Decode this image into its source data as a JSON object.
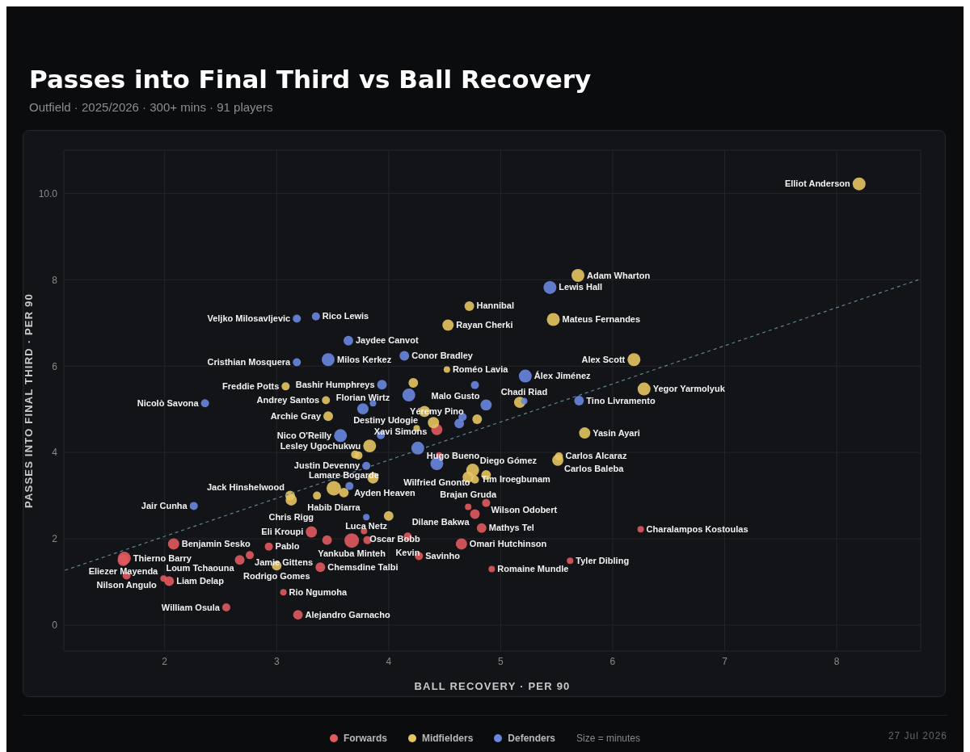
{
  "chart_data": {
    "type": "bubble",
    "title": "Passes into Final Third vs Ball Recovery",
    "subtitle": "Outfield · 2025/2026 · 300+ mins · 91 players",
    "xlabel": "BALL RECOVERY · PER 90",
    "ylabel": "PASSES INTO FINAL THIRD · PER 90",
    "xlim": [
      1.1,
      8.75
    ],
    "xticks": [
      2,
      3,
      4,
      5,
      6,
      7,
      8
    ],
    "ylim": [
      -0.6,
      11
    ],
    "yticks": [
      0,
      2,
      4,
      6,
      8,
      {
        "value": 10,
        "label": "10.0"
      }
    ],
    "grid": true,
    "legend": "bottom",
    "series": [
      {
        "name": "Forwards",
        "color": "#e05a5e",
        "x": [
          1.64,
          1.63,
          1.66,
          2.04,
          1.99,
          2.08,
          2.67,
          2.76,
          2.93,
          2.55,
          3.06,
          3.19,
          3.39,
          3.31,
          3.45,
          3.67,
          3.78,
          3.81,
          4.17,
          4.27,
          4.65,
          4.92,
          4.83,
          4.71,
          4.77,
          4.87,
          5.62,
          6.25,
          4.43,
          4.45
        ],
        "values": [
          1.55,
          1.5,
          1.15,
          1.02,
          1.08,
          1.88,
          1.51,
          1.62,
          1.82,
          0.41,
          0.76,
          0.24,
          1.34,
          2.16,
          1.97,
          1.96,
          2.18,
          1.97,
          2.05,
          1.6,
          1.88,
          1.3,
          2.25,
          2.74,
          2.57,
          2.83,
          1.49,
          2.22,
          4.53,
          3.93
        ],
        "sizes": [
          0.79,
          0.6,
          0.31,
          0.44,
          0.2,
          0.6,
          0.44,
          0.31,
          0.31,
          0.31,
          0.2,
          0.44,
          0.44,
          0.6,
          0.44,
          1,
          0.2,
          0.31,
          0.31,
          0.31,
          0.6,
          0.2,
          0.44,
          0.2,
          0.44,
          0.31,
          0.2,
          0.2,
          0.6,
          0.2
        ]
      },
      {
        "name": "Midfielders",
        "color": "#e6c460",
        "x": [
          8.2,
          5.69,
          5.47,
          6.19,
          6.28,
          5.75,
          4.72,
          4.53,
          4.52,
          4.22,
          5.17,
          4.32,
          4.79,
          4.4,
          4.25,
          3.44,
          3.08,
          3.46,
          3.83,
          3.7,
          3.73,
          3.86,
          3.51,
          3.6,
          3.36,
          3.13,
          3.12,
          4.0,
          4.75,
          4.71,
          4.77,
          4.87,
          5.52,
          5.51,
          3.0
        ],
        "values": [
          10.22,
          8.1,
          7.08,
          6.15,
          5.47,
          4.45,
          7.39,
          6.95,
          5.92,
          5.61,
          5.16,
          4.95,
          4.77,
          4.69,
          4.56,
          5.21,
          5.53,
          4.84,
          4.15,
          3.95,
          3.93,
          3.41,
          3.17,
          3.07,
          3.0,
          2.9,
          3.0,
          2.53,
          3.59,
          3.43,
          3.37,
          3.48,
          3.91,
          3.82,
          1.38
        ],
        "sizes": [
          0.79,
          0.79,
          0.79,
          0.79,
          0.79,
          0.6,
          0.44,
          0.6,
          0.2,
          0.44,
          0.6,
          0.6,
          0.44,
          0.6,
          0.2,
          0.31,
          0.31,
          0.44,
          0.79,
          0.31,
          0.31,
          0.6,
          1,
          0.44,
          0.31,
          0.6,
          0.44,
          0.44,
          0.79,
          0.6,
          0.31,
          0.44,
          0.31,
          0.6,
          0.44
        ]
      },
      {
        "name": "Defenders",
        "color": "#6a86e0",
        "x": [
          5.44,
          5.22,
          5.7,
          4.77,
          4.14,
          3.64,
          3.46,
          3.18,
          3.18,
          3.35,
          2.36,
          3.94,
          4.18,
          5.21,
          4.87,
          4.66,
          4.63,
          3.77,
          3.86,
          3.57,
          3.93,
          4.26,
          4.43,
          3.8,
          3.65,
          2.26,
          3.8
        ],
        "values": [
          7.82,
          5.77,
          5.2,
          5.56,
          6.24,
          6.59,
          6.15,
          6.09,
          7.1,
          7.15,
          5.14,
          5.57,
          5.33,
          5.19,
          5.1,
          4.82,
          4.67,
          5.01,
          5.14,
          4.39,
          4.4,
          4.1,
          3.74,
          3.69,
          3.22,
          2.76,
          2.5
        ],
        "sizes": [
          0.79,
          0.79,
          0.44,
          0.31,
          0.44,
          0.44,
          0.79,
          0.31,
          0.31,
          0.31,
          0.31,
          0.44,
          0.79,
          0.2,
          0.6,
          0.31,
          0.44,
          0.6,
          0.2,
          0.79,
          0.31,
          0.79,
          0.79,
          0.31,
          0.31,
          0.31,
          0.2
        ]
      },
      {
        "type": "line",
        "color": "#5b8799",
        "line_style": "dashed",
        "marker": "none",
        "x": [
          1.11,
          8.73
        ],
        "values": [
          1.27,
          8.0
        ]
      }
    ],
    "annotations": [
      "Size = minutes",
      "27 Jul 2026",
      {
        "text": "Elliot Anderson",
        "x": 8.2,
        "y": 10.22
      },
      {
        "text": "Adam Wharton",
        "x": 5.69,
        "y": 8.1
      },
      {
        "text": "Lewis Hall",
        "x": 5.44,
        "y": 7.82
      },
      {
        "text": "Hannibal",
        "x": 4.72,
        "y": 7.39
      },
      {
        "text": "Mateus Fernandes",
        "x": 5.47,
        "y": 7.08
      },
      {
        "text": "Rico Lewis",
        "x": 3.35,
        "y": 7.15
      },
      {
        "text": "Veljko Milosavljevic",
        "x": 3.18,
        "y": 7.1
      },
      {
        "text": "Rayan Cherki",
        "x": 4.53,
        "y": 6.95
      },
      {
        "text": "Jaydee Canvot",
        "x": 3.64,
        "y": 6.59
      },
      {
        "text": "Conor Bradley",
        "x": 4.14,
        "y": 6.24
      },
      {
        "text": "Milos Kerkez",
        "x": 3.46,
        "y": 6.15
      },
      {
        "text": "Cristhian Mosquera",
        "x": 3.18,
        "y": 6.09
      },
      {
        "text": "Alex Scott",
        "x": 6.19,
        "y": 6.15
      },
      {
        "text": "Roméo Lavia",
        "x": 4.52,
        "y": 5.92
      },
      {
        "text": "Álex Jiménez",
        "x": 5.22,
        "y": 5.77
      },
      {
        "text": "Bashir Humphreys",
        "x": 3.94,
        "y": 5.57
      },
      {
        "text": "Freddie Potts",
        "x": 3.08,
        "y": 5.53
      },
      {
        "text": "Yegor Yarmolyuk",
        "x": 6.28,
        "y": 5.47
      },
      {
        "text": "Chadi Riad",
        "x": 5.21,
        "y": 5.19
      },
      {
        "text": "Andrey Santos",
        "x": 3.44,
        "y": 5.21
      },
      {
        "text": "Nicolò Savona",
        "x": 2.36,
        "y": 5.14
      },
      {
        "text": "Tino Livramento",
        "x": 5.7,
        "y": 5.2
      },
      {
        "text": "Malo Gusto",
        "x": 4.87,
        "y": 5.1
      },
      {
        "text": "Florian Wirtz",
        "x": 3.77,
        "y": 5.01
      },
      {
        "text": "Destiny Udogie",
        "x": 4.32,
        "y": 4.95
      },
      {
        "text": "Archie Gray",
        "x": 3.46,
        "y": 4.84
      },
      {
        "text": "Xavi Simons",
        "x": 4.4,
        "y": 4.69
      },
      {
        "text": "Yéremy Pino",
        "x": 4.43,
        "y": 4.53
      },
      {
        "text": "Yasin Ayari",
        "x": 5.75,
        "y": 4.45
      },
      {
        "text": "Nico O'Reilly",
        "x": 3.57,
        "y": 4.39
      },
      {
        "text": "Lesley Ugochukwu",
        "x": 3.83,
        "y": 4.15
      },
      {
        "text": "Hugo Bueno",
        "x": 4.26,
        "y": 4.1
      },
      {
        "text": "Diego Gómez",
        "x": 4.75,
        "y": 3.59
      },
      {
        "text": "Carlos Alcaraz",
        "x": 5.52,
        "y": 3.91
      },
      {
        "text": "Justin Devenny",
        "x": 3.8,
        "y": 3.69
      },
      {
        "text": "Wilfried Gnonto",
        "x": 4.43,
        "y": 3.74
      },
      {
        "text": "Carlos Baleba",
        "x": 5.51,
        "y": 3.82
      },
      {
        "text": "Ayden Heaven",
        "x": 3.65,
        "y": 3.22
      },
      {
        "text": "Brajan Gruda",
        "x": 4.71,
        "y": 3.43
      },
      {
        "text": "Tim Iroegbunam",
        "x": 4.77,
        "y": 3.37
      },
      {
        "text": "Habib Diarra",
        "x": 3.51,
        "y": 3.17
      },
      {
        "text": "Wilson Odobert",
        "x": 4.87,
        "y": 2.83
      },
      {
        "text": "Lamare Bogarde",
        "x": 3.6,
        "y": 3.07
      },
      {
        "text": "Jack Hinshelwood",
        "x": 3.12,
        "y": 3.0
      },
      {
        "text": "Chris Rigg",
        "x": 3.13,
        "y": 2.9
      },
      {
        "text": "Jair Cunha",
        "x": 2.26,
        "y": 2.76
      },
      {
        "text": "Dilane Bakwa",
        "x": 4.77,
        "y": 2.57
      },
      {
        "text": "Luca Netz",
        "x": 3.8,
        "y": 2.5
      },
      {
        "text": "Pablo",
        "x": 2.93,
        "y": 1.82
      },
      {
        "text": "Eli Kroupi",
        "x": 3.31,
        "y": 2.16
      },
      {
        "text": "Oscar Bobb",
        "x": 3.78,
        "y": 2.18
      },
      {
        "text": "Mathys Tel",
        "x": 4.83,
        "y": 2.25
      },
      {
        "text": "Charalampos Kostoulas",
        "x": 6.25,
        "y": 2.22
      },
      {
        "text": "Thierno Barry",
        "x": 1.64,
        "y": 1.55
      },
      {
        "text": "Benjamin Sesko",
        "x": 2.08,
        "y": 1.88
      },
      {
        "text": "Kevin",
        "x": 4.17,
        "y": 2.05
      },
      {
        "text": "Omari Hutchinson",
        "x": 4.65,
        "y": 1.88
      },
      {
        "text": "Yankuba Minteh",
        "x": 3.67,
        "y": 1.96
      },
      {
        "text": "Loum Tchaouna",
        "x": 2.67,
        "y": 1.51
      },
      {
        "text": "Jamie Gittens",
        "x": 2.76,
        "y": 1.62
      },
      {
        "text": "Savinho",
        "x": 4.27,
        "y": 1.6
      },
      {
        "text": "Eliezer Mayenda",
        "x": 1.63,
        "y": 1.5
      },
      {
        "text": "Tyler Dibling",
        "x": 5.62,
        "y": 1.49
      },
      {
        "text": "Rodrigo Gomes",
        "x": 3.0,
        "y": 1.38
      },
      {
        "text": "Romaine Mundle",
        "x": 4.92,
        "y": 1.3
      },
      {
        "text": "Nilson Angulo",
        "x": 1.66,
        "y": 1.15
      },
      {
        "text": "Liam Delap",
        "x": 2.04,
        "y": 1.02
      },
      {
        "text": "Chemsdine Talbi",
        "x": 3.39,
        "y": 1.34
      },
      {
        "text": "Rio Ngumoha",
        "x": 3.06,
        "y": 0.76
      },
      {
        "text": "William Osula",
        "x": 2.55,
        "y": 0.41
      },
      {
        "text": "Alejandro Garnacho",
        "x": 3.19,
        "y": 0.24
      }
    ]
  }
}
